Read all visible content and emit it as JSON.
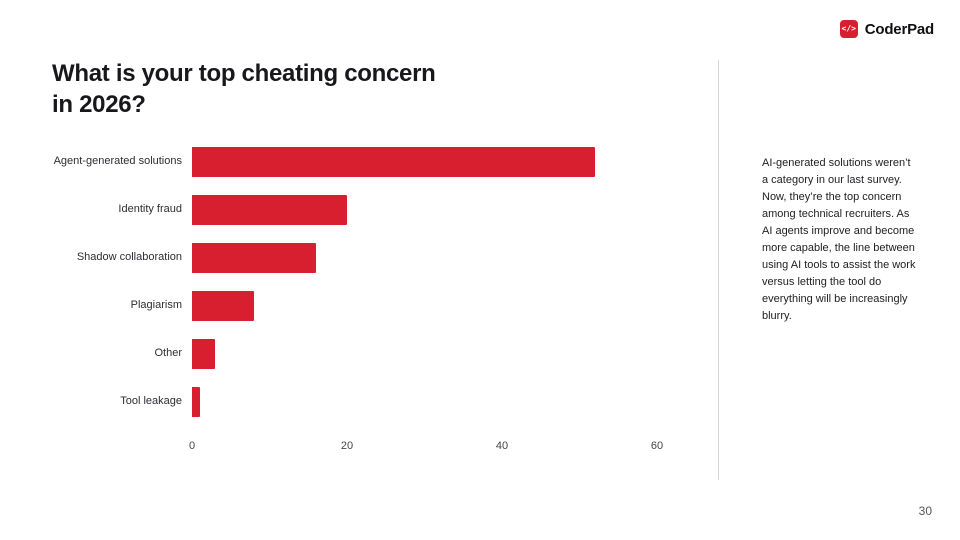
{
  "logo": {
    "text": "CoderPad",
    "icon_glyph": "</>",
    "brand_color": "#d71f2f"
  },
  "title": "What is your top cheating concern\nin 2026?",
  "commentary": "AI-generated solutions weren’t a category in our last survey. Now, they’re the top concern among technical recruiters. As AI agents improve and become more capable, the line between using AI tools to assist the work versus letting the tool do everything will be increasingly blurry.",
  "page_number": "30",
  "chart_data": {
    "type": "bar",
    "orientation": "horizontal",
    "title": "What is your top cheating concern in 2026?",
    "categories": [
      "Agent-generated solutions",
      "Identity fraud",
      "Shadow collaboration",
      "Plagiarism",
      "Other",
      "Tool leakage"
    ],
    "values": [
      52,
      20,
      16,
      8,
      3,
      1
    ],
    "xlabel": "",
    "ylabel": "",
    "xlim": [
      0,
      64
    ],
    "x_ticks": [
      0,
      20,
      40,
      60
    ],
    "bar_color": "#d71f2f",
    "grid": false,
    "legend": false
  }
}
